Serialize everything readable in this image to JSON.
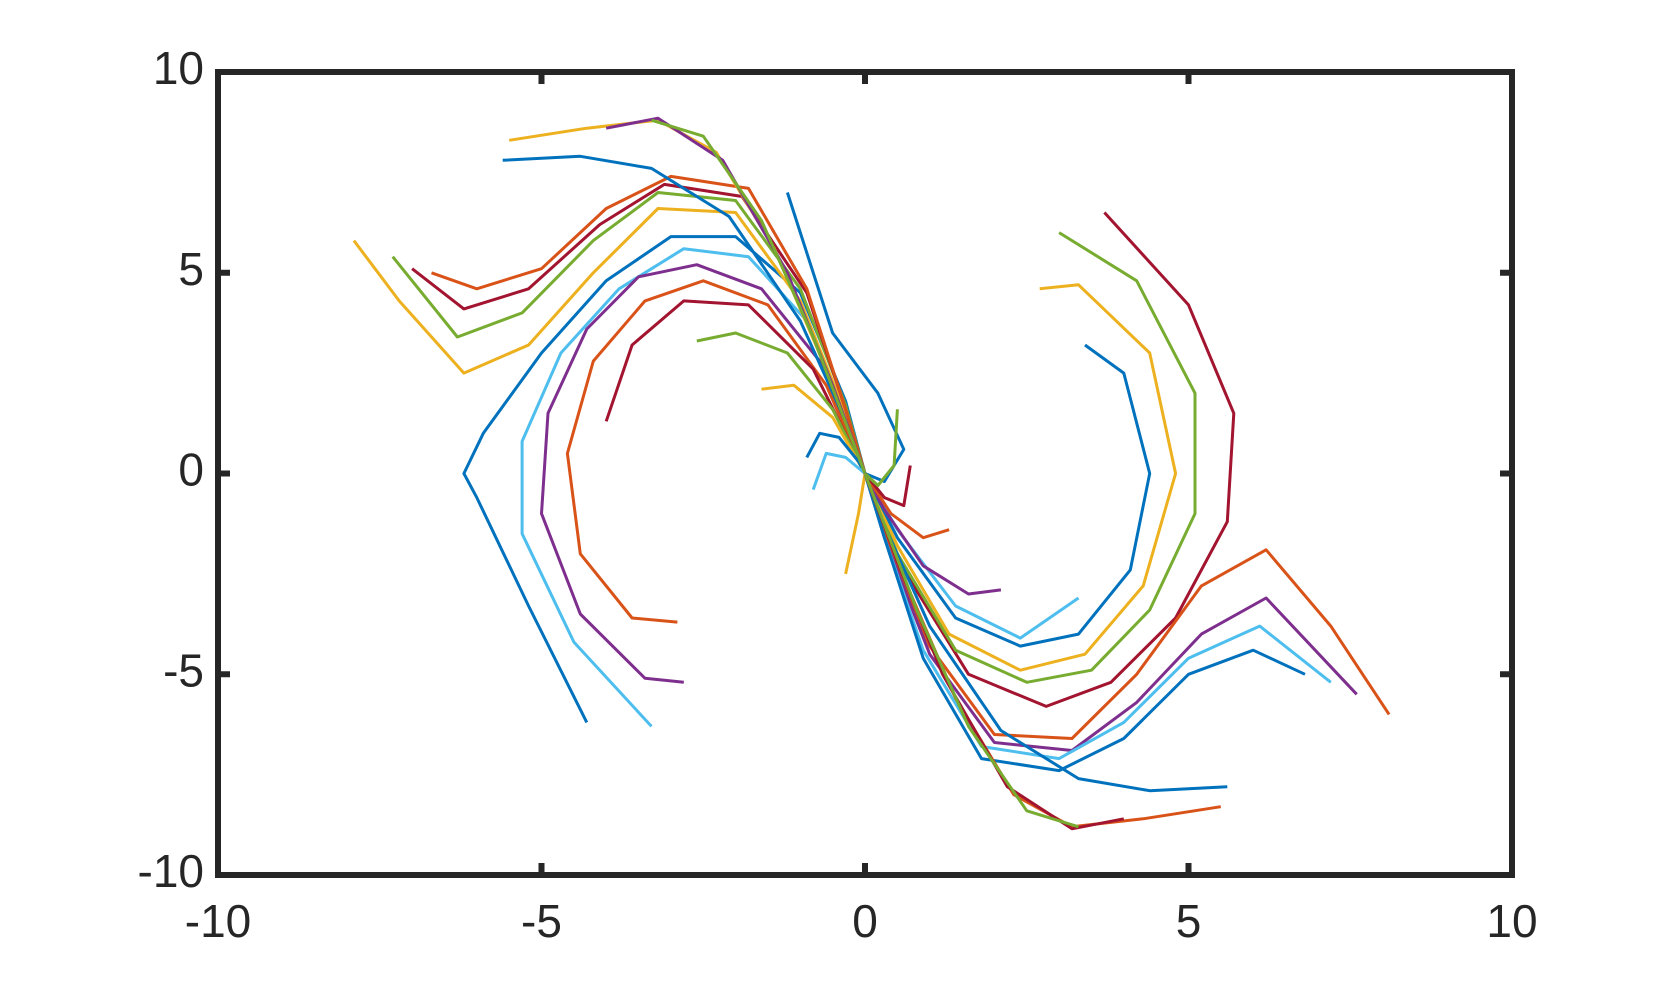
{
  "chart_data": {
    "type": "line",
    "xlim": [
      -10,
      10
    ],
    "ylim": [
      -10,
      10
    ],
    "xticks": [
      -10,
      -5,
      0,
      5,
      10
    ],
    "yticks": [
      -10,
      -5,
      0,
      5,
      10
    ],
    "grid": false,
    "series": [
      {
        "color": "#0072BD",
        "x": [
          -4.3,
          -5.2,
          -6.0,
          -6.2,
          -5.9,
          -5.0,
          -4.0,
          -3.0,
          -2.0,
          -1.0,
          -0.3,
          0
        ],
        "values": [
          -6.2,
          -3.3,
          -0.6,
          0,
          1.0,
          3.0,
          4.8,
          5.9,
          5.9,
          4.5,
          1.8,
          0
        ]
      },
      {
        "color": "#4DBEEE",
        "x": [
          -3.3,
          -4.5,
          -5.3,
          -5.3,
          -4.7,
          -3.8,
          -2.8,
          -1.8,
          -0.9,
          -0.3,
          0
        ],
        "values": [
          -6.3,
          -4.2,
          -1.5,
          0.8,
          3.0,
          4.6,
          5.6,
          5.4,
          3.8,
          1.5,
          0
        ]
      },
      {
        "color": "#7E2F8E",
        "x": [
          -2.8,
          -3.4,
          -4.4,
          -5.0,
          -4.9,
          -4.3,
          -3.5,
          -2.6,
          -1.6,
          -0.7,
          0
        ],
        "values": [
          -5.2,
          -5.1,
          -3.5,
          -1.0,
          1.5,
          3.6,
          4.9,
          5.2,
          4.6,
          2.8,
          0
        ]
      },
      {
        "color": "#D95319",
        "x": [
          -2.9,
          -3.6,
          -4.4,
          -4.6,
          -4.2,
          -3.4,
          -2.5,
          -1.5,
          -0.6,
          0
        ],
        "values": [
          -3.7,
          -3.6,
          -2.0,
          0.5,
          2.8,
          4.3,
          4.8,
          4.2,
          2.2,
          0
        ]
      },
      {
        "color": "#A2142F",
        "x": [
          -4.0,
          -3.6,
          -2.8,
          -1.8,
          -0.8,
          0
        ],
        "values": [
          1.3,
          3.2,
          4.3,
          4.2,
          2.6,
          0
        ]
      },
      {
        "color": "#77AC30",
        "x": [
          -2.6,
          -2.0,
          -1.2,
          -0.5,
          0
        ],
        "values": [
          3.3,
          3.5,
          3.0,
          1.6,
          0
        ]
      },
      {
        "color": "#EDB120",
        "x": [
          -1.6,
          -1.1,
          -0.5,
          0
        ],
        "values": [
          2.1,
          2.2,
          1.4,
          0
        ]
      },
      {
        "color": "#0072BD",
        "x": [
          -0.9,
          -0.7,
          -0.4,
          -0.1,
          0
        ],
        "values": [
          0.4,
          1.0,
          0.9,
          0.3,
          0
        ]
      },
      {
        "color": "#4DBEEE",
        "x": [
          -0.8,
          -0.6,
          -0.3,
          0
        ],
        "values": [
          -0.4,
          0.5,
          0.4,
          0
        ]
      },
      {
        "color": "#EDB120",
        "x": [
          -7.9,
          -7.2,
          -6.2,
          -5.2,
          -4.2,
          -3.2,
          -2.0,
          -1.0,
          -0.3,
          0
        ],
        "values": [
          5.8,
          4.3,
          2.5,
          3.2,
          5.0,
          6.6,
          6.5,
          4.3,
          1.5,
          0
        ]
      },
      {
        "color": "#77AC30",
        "x": [
          -7.3,
          -6.3,
          -5.3,
          -4.2,
          -3.2,
          -2.0,
          -1.0,
          -0.3,
          0
        ],
        "values": [
          5.4,
          3.4,
          4.0,
          5.8,
          7.0,
          6.8,
          4.6,
          1.7,
          0
        ]
      },
      {
        "color": "#A2142F",
        "x": [
          -7.0,
          -6.2,
          -5.2,
          -4.1,
          -3.1,
          -1.9,
          -0.9,
          -0.3,
          0
        ],
        "values": [
          5.1,
          4.1,
          4.6,
          6.2,
          7.2,
          6.9,
          4.5,
          1.6,
          0
        ]
      },
      {
        "color": "#D95319",
        "x": [
          -6.7,
          -6.0,
          -5.0,
          -4.0,
          -3.0,
          -1.8,
          -0.9,
          -0.3,
          0
        ],
        "values": [
          5.0,
          4.6,
          5.1,
          6.6,
          7.4,
          7.1,
          4.6,
          1.6,
          0
        ]
      },
      {
        "color": "#0072BD",
        "x": [
          -5.6,
          -4.4,
          -3.3,
          -2.1,
          -1.0,
          -0.3,
          0
        ],
        "values": [
          7.8,
          7.9,
          7.6,
          6.4,
          3.8,
          1.3,
          0
        ]
      },
      {
        "color": "#EDB120",
        "x": [
          -5.5,
          -4.3,
          -3.2,
          -2.3,
          -1.4,
          -0.6,
          0
        ],
        "values": [
          8.3,
          8.6,
          8.8,
          8.0,
          5.6,
          2.6,
          0
        ]
      },
      {
        "color": "#7E2F8E",
        "x": [
          -4.0,
          -3.2,
          -2.2,
          -1.2,
          -0.5,
          0
        ],
        "values": [
          8.6,
          8.85,
          7.8,
          5.0,
          2.2,
          0
        ]
      },
      {
        "color": "#77AC30",
        "x": [
          -3.3,
          -2.5,
          -1.6,
          -0.8,
          0
        ],
        "values": [
          8.8,
          8.4,
          6.3,
          3.4,
          0
        ]
      },
      {
        "color": "#0072BD",
        "x": [
          -1.2,
          -0.5,
          0.2,
          0.6,
          0.3,
          0
        ],
        "values": [
          7.0,
          3.5,
          2.0,
          0.6,
          -0.2,
          0
        ]
      },
      {
        "color": "#A2142F",
        "x": [
          3.7,
          5.0,
          5.7,
          5.6,
          4.8,
          3.8,
          2.8,
          1.6,
          0.6,
          0
        ],
        "values": [
          6.5,
          4.2,
          1.5,
          -1.2,
          -3.6,
          -5.2,
          -5.8,
          -5.0,
          -2.4,
          0
        ]
      },
      {
        "color": "#77AC30",
        "x": [
          3.0,
          4.2,
          5.1,
          5.1,
          4.4,
          3.5,
          2.5,
          1.4,
          0.5,
          0
        ],
        "values": [
          6.0,
          4.8,
          2.0,
          -1.0,
          -3.4,
          -4.9,
          -5.2,
          -4.4,
          -2.0,
          0
        ]
      },
      {
        "color": "#EDB120",
        "x": [
          2.7,
          3.3,
          4.4,
          4.8,
          4.3,
          3.4,
          2.4,
          1.3,
          0.5,
          0
        ],
        "values": [
          4.6,
          4.7,
          3.0,
          0,
          -2.8,
          -4.5,
          -4.9,
          -4.0,
          -1.8,
          0
        ]
      },
      {
        "color": "#0072BD",
        "x": [
          3.4,
          4.0,
          4.4,
          4.1,
          3.3,
          2.4,
          1.4,
          0.5,
          0
        ],
        "values": [
          3.2,
          2.5,
          0,
          -2.4,
          -4.0,
          -4.3,
          -3.6,
          -1.6,
          0
        ]
      },
      {
        "color": "#4DBEEE",
        "x": [
          3.3,
          2.4,
          1.4,
          0.5,
          0
        ],
        "values": [
          -3.1,
          -4.1,
          -3.3,
          -1.4,
          0
        ]
      },
      {
        "color": "#7E2F8E",
        "x": [
          2.1,
          1.6,
          0.9,
          0.3,
          0
        ],
        "values": [
          -2.9,
          -3.0,
          -2.3,
          -0.9,
          0
        ]
      },
      {
        "color": "#D95319",
        "x": [
          1.3,
          0.9,
          0.4,
          0
        ],
        "values": [
          -1.4,
          -1.6,
          -1.0,
          0
        ]
      },
      {
        "color": "#A2142F",
        "x": [
          0.7,
          0.6,
          0.3,
          0
        ],
        "values": [
          0.2,
          -0.8,
          -0.6,
          0
        ]
      },
      {
        "color": "#77AC30",
        "x": [
          0.5,
          0.45,
          0.2,
          0
        ],
        "values": [
          1.6,
          0.2,
          -0.3,
          0
        ]
      },
      {
        "color": "#EDB120",
        "x": [
          -0.3,
          -0.1,
          0
        ],
        "values": [
          -2.5,
          -1.0,
          0
        ]
      },
      {
        "color": "#D95319",
        "x": [
          8.1,
          7.2,
          6.2,
          5.2,
          4.2,
          3.2,
          2.0,
          1.0,
          0.3,
          0
        ],
        "values": [
          -6.0,
          -3.8,
          -1.9,
          -2.8,
          -5.0,
          -6.6,
          -6.5,
          -4.3,
          -1.5,
          0
        ]
      },
      {
        "color": "#7E2F8E",
        "x": [
          7.6,
          6.2,
          5.2,
          4.2,
          3.2,
          2.0,
          1.0,
          0.3,
          0
        ],
        "values": [
          -5.5,
          -3.1,
          -4.0,
          -5.7,
          -6.9,
          -6.7,
          -4.5,
          -1.6,
          0
        ]
      },
      {
        "color": "#4DBEEE",
        "x": [
          7.2,
          6.1,
          5.0,
          4.0,
          3.0,
          1.8,
          0.9,
          0.3,
          0
        ],
        "values": [
          -5.2,
          -3.8,
          -4.6,
          -6.2,
          -7.1,
          -6.8,
          -4.4,
          -1.6,
          0
        ]
      },
      {
        "color": "#0072BD",
        "x": [
          6.8,
          6.0,
          5.0,
          4.0,
          3.0,
          1.8,
          0.9,
          0.3,
          0
        ],
        "values": [
          -5.0,
          -4.4,
          -5.0,
          -6.6,
          -7.4,
          -7.1,
          -4.6,
          -1.6,
          0
        ]
      },
      {
        "color": "#0072BD",
        "x": [
          5.6,
          4.4,
          3.3,
          2.1,
          1.0,
          0.3,
          0
        ],
        "values": [
          -7.8,
          -7.9,
          -7.6,
          -6.4,
          -3.8,
          -1.3,
          0
        ]
      },
      {
        "color": "#D95319",
        "x": [
          5.5,
          4.3,
          3.2,
          2.3,
          1.4,
          0.6,
          0
        ],
        "values": [
          -8.3,
          -8.6,
          -8.8,
          -8.0,
          -5.6,
          -2.6,
          0
        ]
      },
      {
        "color": "#A2142F",
        "x": [
          4.0,
          3.2,
          2.2,
          1.2,
          0.5,
          0
        ],
        "values": [
          -8.6,
          -8.85,
          -7.8,
          -5.0,
          -2.2,
          0
        ]
      },
      {
        "color": "#77AC30",
        "x": [
          3.3,
          2.5,
          1.6,
          0.8,
          0
        ],
        "values": [
          -8.8,
          -8.4,
          -6.3,
          -3.4,
          0
        ]
      }
    ]
  }
}
